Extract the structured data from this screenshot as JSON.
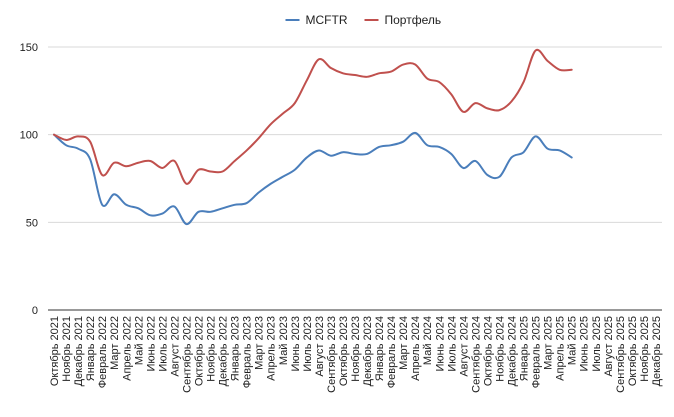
{
  "chart_data": {
    "type": "line",
    "x": [
      "Октябрь 2021",
      "Ноябрь 2021",
      "Декабрь 2021",
      "Январь 2022",
      "Февраль 2022",
      "Март 2022",
      "Апрель 2022",
      "Май 2022",
      "Июнь 2022",
      "Июль 2022",
      "Август 2022",
      "Сентябрь 2022",
      "Октябрь 2022",
      "Ноябрь 2022",
      "Декабрь 2022",
      "Январь 2023",
      "Февраль 2023",
      "Март 2023",
      "Апрель 2023",
      "Май 2023",
      "Июнь 2023",
      "Июль 2023",
      "Август 2023",
      "Сентябрь 2023",
      "Октябрь 2023",
      "Ноябрь 2023",
      "Декабрь 2023",
      "Январь 2024",
      "Февраль 2024",
      "Март 2024",
      "Апрель 2024",
      "Май 2024",
      "Июнь 2024",
      "Июль 2024",
      "Август 2024",
      "Сентябрь 2024",
      "Октябрь 2024",
      "Ноябрь 2024",
      "Декабрь 2024",
      "Январь 2025",
      "Февраль 2025",
      "Март 2025",
      "Апрель 2025",
      "Май 2025",
      "Июнь 2025",
      "Июль 2025",
      "Август 2025",
      "Сентябрь 2025",
      "Октябрь 2025",
      "Ноябрь 2025",
      "Декабрь 2025"
    ],
    "series": [
      {
        "name": "MCFTR",
        "color": "#4a7ebb",
        "values": [
          100,
          94,
          92,
          86,
          60,
          66,
          60,
          58,
          54,
          55,
          59,
          49,
          56,
          56,
          58,
          60,
          61,
          67,
          72,
          76,
          80,
          87,
          91,
          88,
          90,
          89,
          89,
          93,
          94,
          96,
          101,
          94,
          93,
          89,
          81,
          85,
          77,
          76,
          87,
          90,
          99,
          92,
          91,
          87,
          null,
          null,
          null,
          null,
          null,
          null,
          null
        ]
      },
      {
        "name": "Портфель",
        "color": "#c0504d",
        "values": [
          100,
          97,
          99,
          96,
          77,
          84,
          82,
          84,
          85,
          81,
          85,
          72,
          80,
          79,
          79,
          85,
          91,
          98,
          106,
          112,
          118,
          131,
          143,
          138,
          135,
          134,
          133,
          135,
          136,
          140,
          140,
          132,
          130,
          123,
          113,
          118,
          115,
          114,
          119,
          130,
          148,
          142,
          137,
          137,
          null,
          null,
          null,
          null,
          null,
          null,
          null
        ]
      }
    ],
    "title": "",
    "xlabel": "",
    "ylabel": "",
    "ylim": [
      0,
      150
    ],
    "yticks": [
      0,
      50,
      100,
      150
    ],
    "grid": true,
    "legend_position": "top-center"
  }
}
